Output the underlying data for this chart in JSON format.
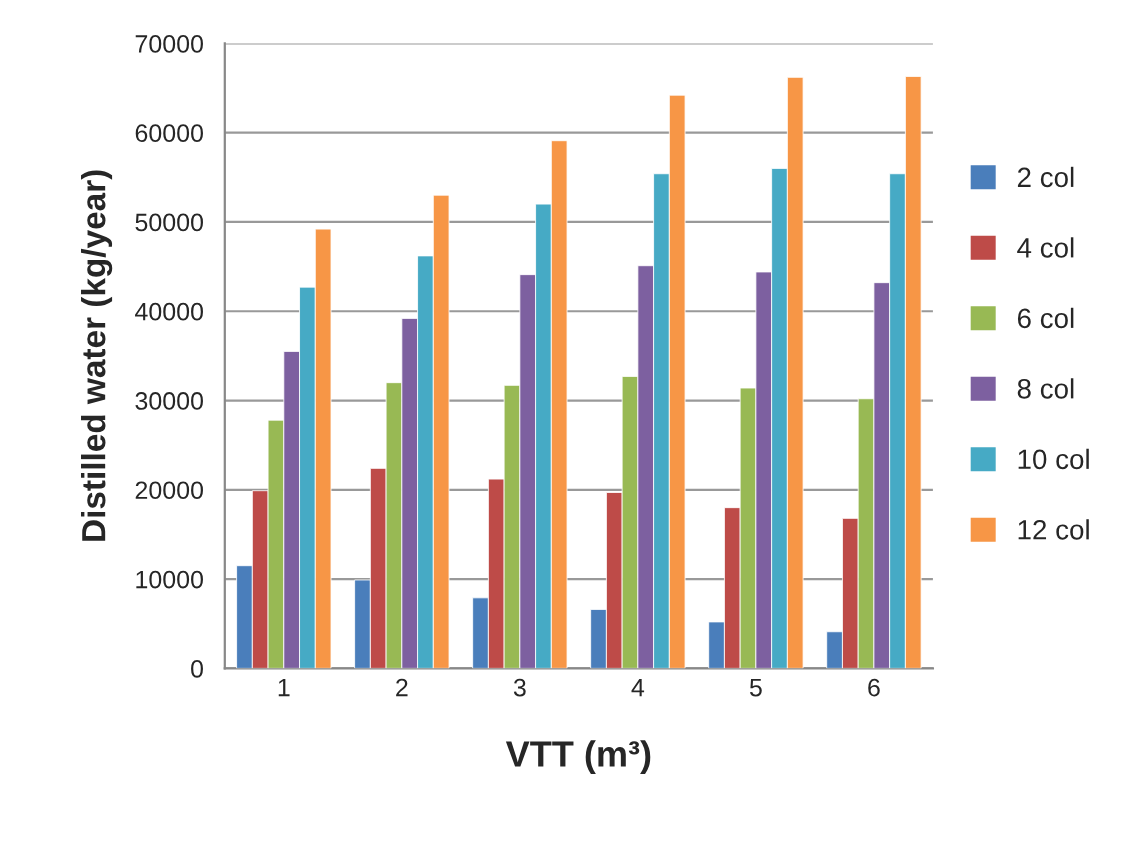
{
  "chart_data": {
    "type": "bar",
    "xlabel": "VTT (m³)",
    "ylabel": "Distilled water (kg/year)",
    "categories": [
      "1",
      "2",
      "3",
      "4",
      "5",
      "6"
    ],
    "series": [
      {
        "name": "2 col",
        "color": "#4a7ebb",
        "values": [
          11500,
          9900,
          7900,
          6600,
          5200,
          4100
        ]
      },
      {
        "name": "4 col",
        "color": "#be4b48",
        "values": [
          19900,
          22400,
          21200,
          19700,
          18000,
          16800
        ]
      },
      {
        "name": "6 col",
        "color": "#98b954",
        "values": [
          27800,
          32000,
          31700,
          32700,
          31400,
          30200
        ]
      },
      {
        "name": "8 col",
        "color": "#7d60a0",
        "values": [
          35500,
          39200,
          44100,
          45100,
          44400,
          43200
        ]
      },
      {
        "name": "10 col",
        "color": "#46aac5",
        "values": [
          42700,
          46200,
          52000,
          55400,
          56000,
          55400
        ]
      },
      {
        "name": "12 col",
        "color": "#f79646",
        "values": [
          49200,
          53000,
          59100,
          64200,
          66200,
          66300
        ]
      }
    ],
    "ylim": [
      0,
      70000
    ],
    "yticks": [
      0,
      10000,
      20000,
      30000,
      40000,
      50000,
      60000,
      70000
    ],
    "grid": "y",
    "legend": "right"
  }
}
